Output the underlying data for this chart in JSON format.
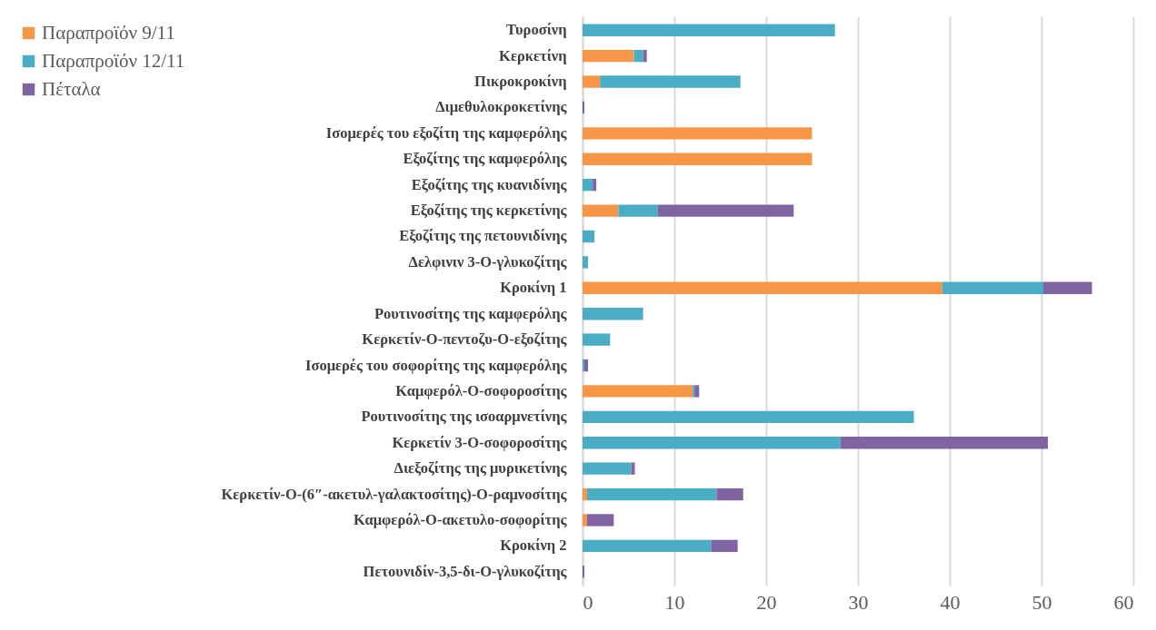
{
  "chart_data": {
    "type": "bar",
    "orientation": "horizontal",
    "stacked": true,
    "categories": [
      "Τυροσίνη",
      "Κερκετίνη",
      "Πικροκροκίνη",
      "Διμεθυλοκροκετίνης",
      "Ισομερές του εξοζίτη της καμφερόλης",
      "Εξοζίτης της καμφερόλης",
      "Εξοζίτης της κυανιδίνης",
      "Εξοζίτης της κερκετίνης",
      "Εξοζίτης της πετουνιδίνης",
      "Δελφινιν 3-Ο-γλυκοζίτης",
      "Κροκίνη 1",
      "Ρουτινοσίτης της καμφερόλης",
      "Κερκετίν-Ο-πεντοζυ-Ο-εξοζίτης",
      "Ισομερές του σοφορίτης της καμφερόλης",
      "Καμφερόλ-Ο-σοφοροσίτης",
      "Ρουτινοσίτης της ισοαρμνετίνης",
      "Κερκετίν 3-Ο-σοφοροσίτης",
      "Διεξοζίτης της μυρικετίνης",
      "Κερκετίν-Ο-(6″-ακετυλ-γαλακτοσίτης)-Ο-ραμνοσίτης",
      "Καμφερόλ-Ο-ακετυλο-σοφορίτης",
      "Κροκίνη 2",
      "Πετουνιδίν-3,5-δι-Ο-γλυκοζίτης"
    ],
    "series": [
      {
        "name": "Παραπροϊόν 9/11",
        "color": "#f79646",
        "values": [
          null,
          5.6,
          1.9,
          null,
          25,
          25,
          null,
          3.9,
          null,
          null,
          39.2,
          null,
          null,
          null,
          12,
          null,
          null,
          null,
          0.5,
          0.5,
          null,
          null
        ]
      },
      {
        "name": "Παραπροϊόν 12/11",
        "color": "#4bacc6",
        "values": [
          27.5,
          1,
          15.3,
          null,
          null,
          null,
          1.1,
          4.3,
          1.3,
          0.6,
          11,
          6.6,
          3,
          0.2,
          0.2,
          36.1,
          28.1,
          5.3,
          14.1,
          null,
          14,
          null
        ]
      },
      {
        "name": "Πέταλα",
        "color": "#8064a2",
        "values": [
          null,
          0.4,
          null,
          0.2,
          null,
          null,
          0.4,
          14.8,
          null,
          null,
          5.3,
          null,
          null,
          0.4,
          0.5,
          null,
          22.6,
          0.4,
          2.9,
          2.9,
          2.9,
          0.2
        ]
      }
    ],
    "xlim": [
      0,
      60
    ],
    "xticks": [
      0,
      10,
      20,
      30,
      40,
      50,
      60
    ],
    "grid": "x",
    "legend": "top left"
  }
}
